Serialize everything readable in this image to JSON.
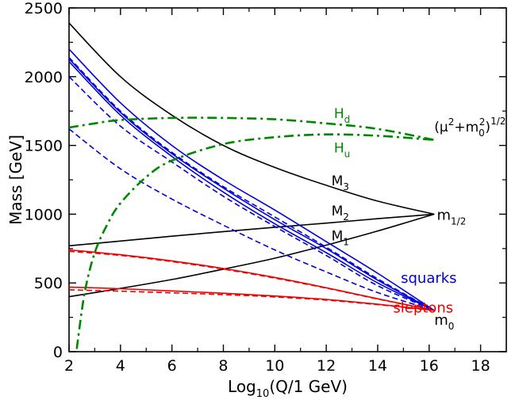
{
  "chart_data": {
    "type": "line",
    "title": "",
    "xlabel": {
      "base": "Log",
      "sub": "10",
      "rest": "(Q/1 GeV)"
    },
    "ylabel": "Mass  [GeV]",
    "xlim": [
      2,
      19
    ],
    "ylim": [
      0,
      2500
    ],
    "x_ticks": [
      2,
      4,
      6,
      8,
      10,
      12,
      14,
      16,
      18
    ],
    "x_tick_labels": [
      "2",
      "4",
      "6",
      "8",
      "10",
      "12",
      "14",
      "16",
      "18"
    ],
    "y_ticks": [
      0,
      500,
      1000,
      1500,
      2000,
      2500
    ],
    "y_tick_labels": [
      "0",
      "500",
      "1000",
      "1500",
      "2000",
      "2500"
    ],
    "grid": false,
    "colors": {
      "gaugino": "#000000",
      "squark": "#0000dd",
      "slepton": "#ee0000",
      "higgs": "#008800"
    },
    "series": [
      {
        "name": "M3",
        "group": "gaugino",
        "dash": "solid",
        "x": [
          2,
          4,
          6,
          8,
          10,
          12,
          14,
          16.2
        ],
        "y": [
          2390,
          2000,
          1720,
          1500,
          1340,
          1210,
          1095,
          1000
        ]
      },
      {
        "name": "M2",
        "group": "gaugino",
        "dash": "solid",
        "x": [
          2,
          4,
          6,
          8,
          10,
          12,
          14,
          16.2
        ],
        "y": [
          770,
          805,
          840,
          873,
          905,
          935,
          967,
          1000
        ]
      },
      {
        "name": "M1",
        "group": "gaugino",
        "dash": "solid",
        "x": [
          2,
          4,
          6,
          8,
          10,
          12,
          14,
          16.2
        ],
        "y": [
          400,
          460,
          525,
          600,
          680,
          775,
          878,
          1000
        ]
      },
      {
        "name": "squark 1",
        "group": "squark",
        "dash": "solid",
        "x": [
          2,
          4,
          6,
          8,
          10,
          12,
          14,
          16.2
        ],
        "y": [
          2200,
          1810,
          1500,
          1250,
          1030,
          800,
          570,
          300
        ]
      },
      {
        "name": "squark 2",
        "group": "squark",
        "dash": "solid",
        "x": [
          2,
          4,
          6,
          8,
          10,
          12,
          14,
          16.2
        ],
        "y": [
          2130,
          1740,
          1440,
          1190,
          960,
          750,
          520,
          300
        ]
      },
      {
        "name": "squark 3",
        "group": "squark",
        "dash": "solid",
        "x": [
          2,
          4,
          6,
          8,
          10,
          12,
          14,
          16.2
        ],
        "y": [
          2110,
          1720,
          1420,
          1160,
          930,
          720,
          500,
          300
        ]
      },
      {
        "name": "squark 4",
        "group": "squark",
        "dash": "dashed",
        "x": [
          2,
          4,
          6,
          8,
          10,
          12,
          14,
          16.2
        ],
        "y": [
          2140,
          1750,
          1450,
          1200,
          980,
          760,
          530,
          300
        ]
      },
      {
        "name": "squark 5",
        "group": "squark",
        "dash": "dashed",
        "x": [
          2,
          4,
          6,
          8,
          10,
          12,
          14,
          16.2
        ],
        "y": [
          2000,
          1640,
          1380,
          1130,
          910,
          700,
          480,
          300
        ]
      },
      {
        "name": "squark 6",
        "group": "squark",
        "dash": "dashed",
        "x": [
          2,
          4,
          6,
          8,
          10,
          12,
          14,
          16.2
        ],
        "y": [
          1620,
          1330,
          1110,
          920,
          740,
          580,
          430,
          300
        ]
      },
      {
        "name": "slepton 1",
        "group": "slepton",
        "dash": "solid",
        "x": [
          2,
          4,
          6,
          8,
          10,
          12,
          14,
          16.2
        ],
        "y": [
          740,
          705,
          660,
          605,
          540,
          465,
          385,
          300
        ]
      },
      {
        "name": "slepton 2",
        "group": "slepton",
        "dash": "dashed",
        "x": [
          2,
          4,
          6,
          8,
          10,
          12,
          14,
          16.2
        ],
        "y": [
          730,
          700,
          655,
          600,
          535,
          462,
          383,
          300
        ]
      },
      {
        "name": "slepton 3",
        "group": "slepton",
        "dash": "solid",
        "x": [
          2,
          4,
          6,
          8,
          10,
          12,
          14,
          16.2
        ],
        "y": [
          470,
          458,
          442,
          425,
          405,
          380,
          345,
          300
        ]
      },
      {
        "name": "slepton 4",
        "group": "slepton",
        "dash": "dashed",
        "x": [
          2,
          4,
          6,
          8,
          10,
          12,
          14,
          16.2
        ],
        "y": [
          450,
          440,
          428,
          415,
          398,
          375,
          342,
          300
        ]
      },
      {
        "name": "Hd",
        "group": "higgs",
        "dash": "dashdot",
        "x": [
          2,
          3,
          4,
          6,
          8,
          10,
          12,
          14,
          16.2
        ],
        "y": [
          1630,
          1660,
          1685,
          1700,
          1700,
          1690,
          1660,
          1620,
          1540
        ]
      },
      {
        "name": "Hu",
        "group": "higgs",
        "dash": "dashdot",
        "x": [
          2.3,
          2.6,
          3.0,
          3.5,
          4,
          5,
          6,
          8,
          10,
          12,
          14,
          16.2
        ],
        "y": [
          20,
          420,
          720,
          930,
          1080,
          1270,
          1390,
          1510,
          1560,
          1580,
          1570,
          1540
        ]
      }
    ],
    "annotations": [
      {
        "id": "m3",
        "base": "M",
        "sub": "3",
        "color": "#000000",
        "x": 12.2,
        "y": 1210
      },
      {
        "id": "m2",
        "base": "M",
        "sub": "2",
        "color": "#000000",
        "x": 12.2,
        "y": 990
      },
      {
        "id": "m1",
        "base": "M",
        "sub": "1",
        "color": "#000000",
        "x": 12.2,
        "y": 810
      },
      {
        "id": "m12",
        "base": "m",
        "sub": "1/2",
        "color": "#000000",
        "x": 16.3,
        "y": 960
      },
      {
        "id": "m0",
        "base": "m",
        "sub": "0",
        "color": "#000000",
        "x": 16.2,
        "y": 195
      },
      {
        "id": "hd",
        "base": "H",
        "sub": "d",
        "color": "#008800",
        "x": 12.3,
        "y": 1700
      },
      {
        "id": "hu",
        "base": "H",
        "sub": "u",
        "color": "#008800",
        "x": 12.3,
        "y": 1450
      },
      {
        "id": "squarks",
        "base": "squarks",
        "sub": "",
        "color": "#0000dd",
        "x": 14.9,
        "y": 500
      },
      {
        "id": "sleptons",
        "base": "sleptons",
        "sub": "",
        "color": "#ee0000",
        "x": 14.6,
        "y": 285
      },
      {
        "id": "mu",
        "base": "(μ",
        "sup1": "2",
        "mid": "+m",
        "sub": "0",
        "sup2": "2",
        "tail": ")",
        "sup3": "1/2",
        "color": "#000000",
        "x": 16.2,
        "y": 1600
      }
    ]
  }
}
